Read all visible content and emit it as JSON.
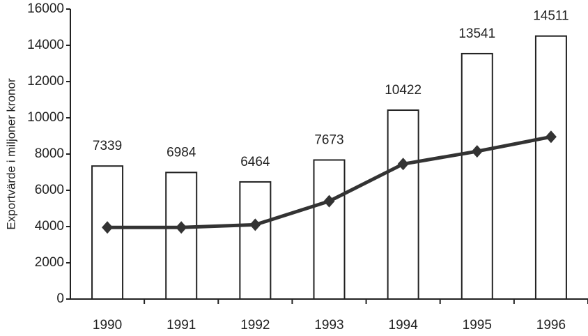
{
  "chart_data": {
    "type": "bar",
    "y_label": "Exportvärde i miljoner kronor",
    "categories": [
      "1990",
      "1991",
      "1992",
      "1993",
      "1994",
      "1995",
      "1996"
    ],
    "series": [
      {
        "type": "bar",
        "color": "#ffffff",
        "values": [
          7339,
          6984,
          6464,
          7673,
          10422,
          13541,
          14511
        ]
      },
      {
        "type": "line",
        "color": "#333333",
        "values": [
          3950,
          3950,
          4100,
          5400,
          7450,
          8150,
          8950
        ]
      }
    ],
    "ylim": [
      0,
      16000
    ],
    "yticks": [
      0,
      2000,
      4000,
      6000,
      8000,
      10000,
      12000,
      14000,
      16000
    ],
    "grid": false
  }
}
